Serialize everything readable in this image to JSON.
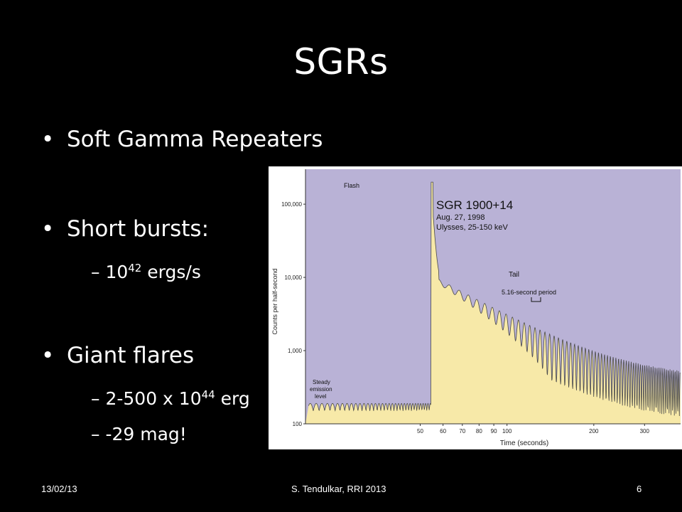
{
  "slide": {
    "title": "SGRs",
    "bullets": [
      {
        "text": "Soft Gamma Repeaters"
      },
      {
        "text": "Short bursts:"
      },
      {
        "text": "Giant flares"
      }
    ],
    "sub_bullets": [
      {
        "dash": "–",
        "base": "10",
        "exp": "42",
        "rest": " ergs/s"
      },
      {
        "dash": "–",
        "base": "2-500 x 10",
        "exp": "44",
        "rest": " erg"
      },
      {
        "dash": "–",
        "base": "-29 mag!",
        "exp": "",
        "rest": ""
      }
    ],
    "footer": {
      "date": "13/02/13",
      "author": "S. Tendulkar, RRI 2013",
      "page": "6"
    }
  },
  "chart_data": {
    "type": "area",
    "ylabel": "Counts per half-second",
    "xlabel": "Time (seconds)",
    "y_log": true,
    "x_log": true,
    "ylim": [
      100,
      300000
    ],
    "xlim": [
      20,
      400
    ],
    "yticks": [
      {
        "v": 100,
        "label": "100"
      },
      {
        "v": 1000,
        "label": "1,000"
      },
      {
        "v": 10000,
        "label": "10,000"
      },
      {
        "v": 100000,
        "label": "100,000"
      }
    ],
    "xticks": [
      {
        "v": 50,
        "label": "50"
      },
      {
        "v": 60,
        "label": "60"
      },
      {
        "v": 70,
        "label": "70"
      },
      {
        "v": 80,
        "label": "80"
      },
      {
        "v": 90,
        "label": "90"
      },
      {
        "v": 100,
        "label": "100"
      },
      {
        "v": 200,
        "label": "200"
      },
      {
        "v": 300,
        "label": "300"
      }
    ],
    "annotations": {
      "box_title": "SGR 1900+14",
      "box_line1": "Aug. 27, 1998",
      "box_line2": "Ulysses, 25-150 keV",
      "flash": "Flash",
      "tail": "Tail",
      "period": "5.16-second period",
      "steady1": "Steady",
      "steady2": "emission",
      "steady3": "level"
    },
    "colors": {
      "background": "#b9b2d6",
      "fill": "#f7e9a8",
      "line": "#4a4a4a"
    }
  }
}
